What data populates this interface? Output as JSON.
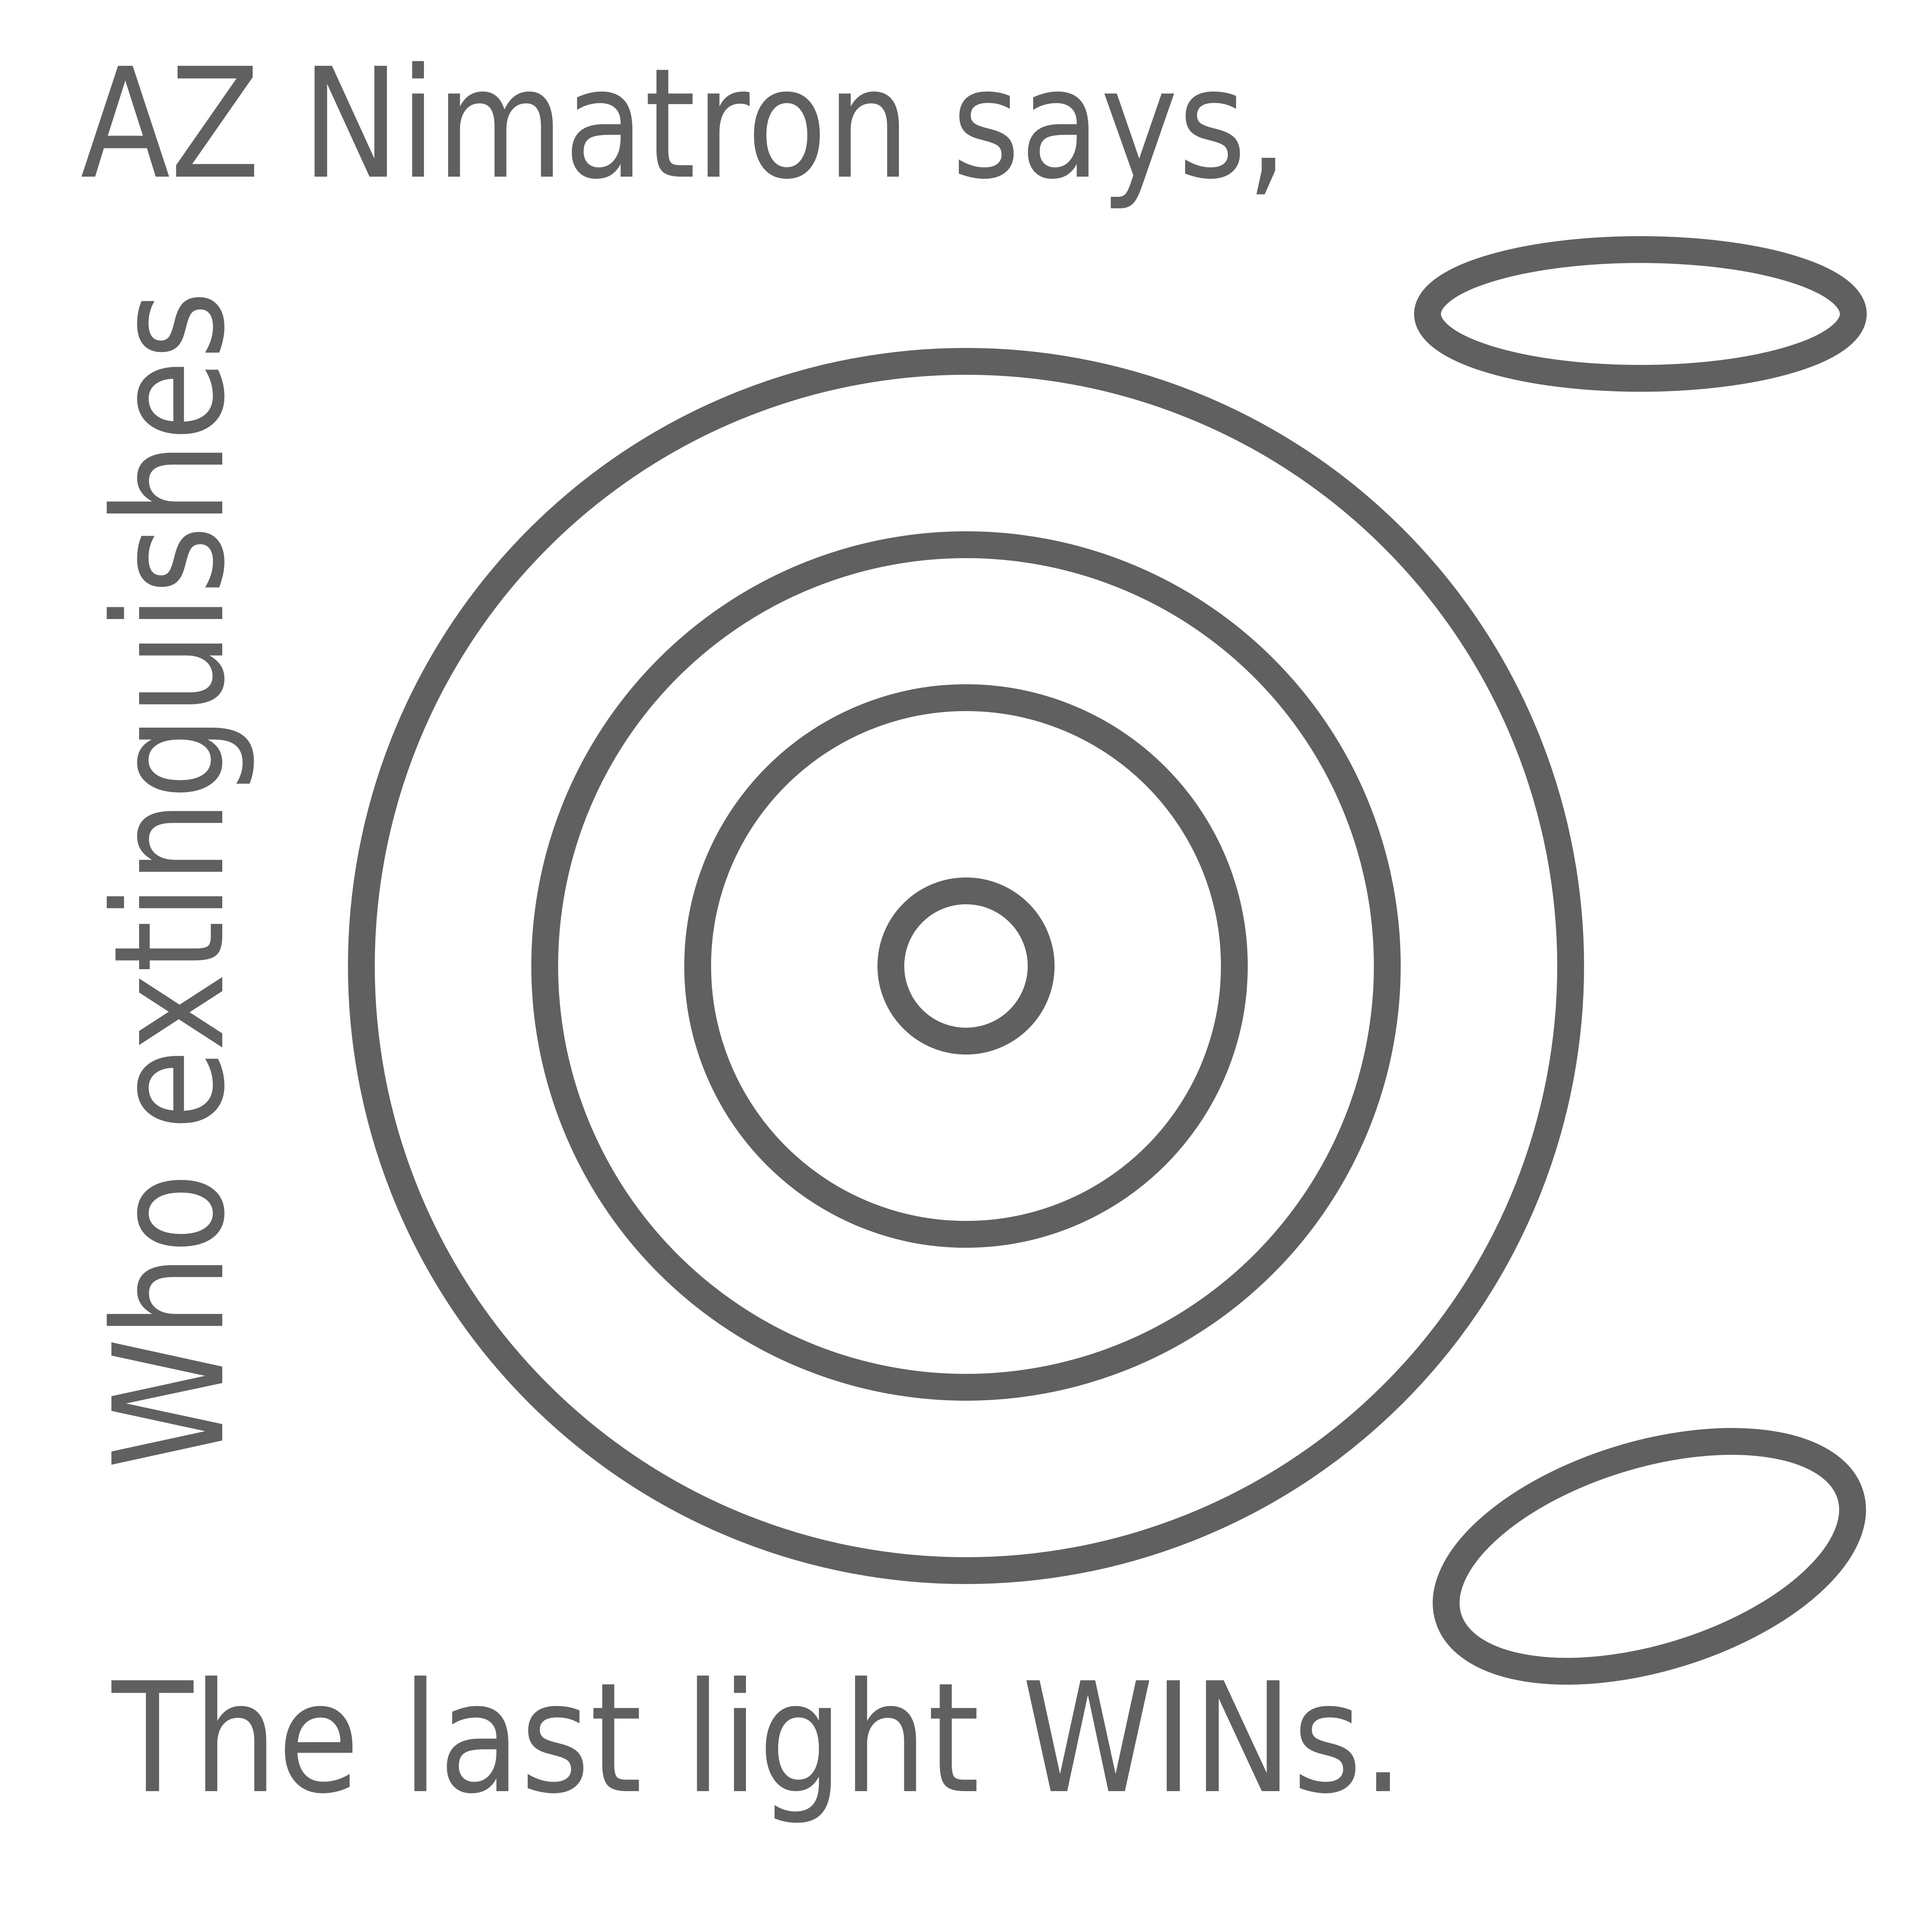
{
  "texts": {
    "line1": "AZ Nimatron says,",
    "line2": "Who extinguishes",
    "line3": "The last light WINs."
  },
  "colors": {
    "ink": "#606060",
    "background": "#ffffff"
  }
}
